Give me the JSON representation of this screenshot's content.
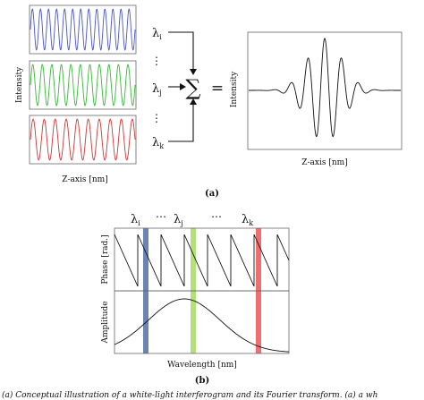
{
  "figure_a": {
    "left_panels": {
      "ylabel": "Intensity",
      "xlabel": "Z-axis [nm]",
      "series": [
        {
          "color": "#4a55c8",
          "cycles": 13
        },
        {
          "color": "#38b838",
          "cycles": 11
        },
        {
          "color": "#cc3838",
          "cycles": 9.5
        }
      ]
    },
    "lambdas": [
      {
        "symbol": "λ",
        "sub": "i"
      },
      {
        "symbol": "λ",
        "sub": "j"
      },
      {
        "symbol": "λ",
        "sub": "k"
      }
    ],
    "ellipsis": "⋮",
    "sum_symbol": "∑",
    "equals": "=",
    "result_plot": {
      "ylabel": "Intensity",
      "xlabel": "Z-axis [nm]"
    },
    "caption": "(a)"
  },
  "figure_b": {
    "lambdas": [
      {
        "symbol": "λ",
        "sub": "i"
      },
      {
        "symbol": "λ",
        "sub": "j"
      },
      {
        "symbol": "λ",
        "sub": "k"
      }
    ],
    "ellipsis": "⋯",
    "phase_ylabel": "Phase [rad.]",
    "amplitude_ylabel": "Amplitude",
    "xlabel": "Wavelength [nm]",
    "bar_colors": [
      "#6c84b2",
      "#b4e07a",
      "#ee6f6f"
    ],
    "caption": "(b)"
  },
  "footer_caption": "(a) Conceptual illustration of a white-light interferogram and its Fourier transform. (a) a wh"
}
